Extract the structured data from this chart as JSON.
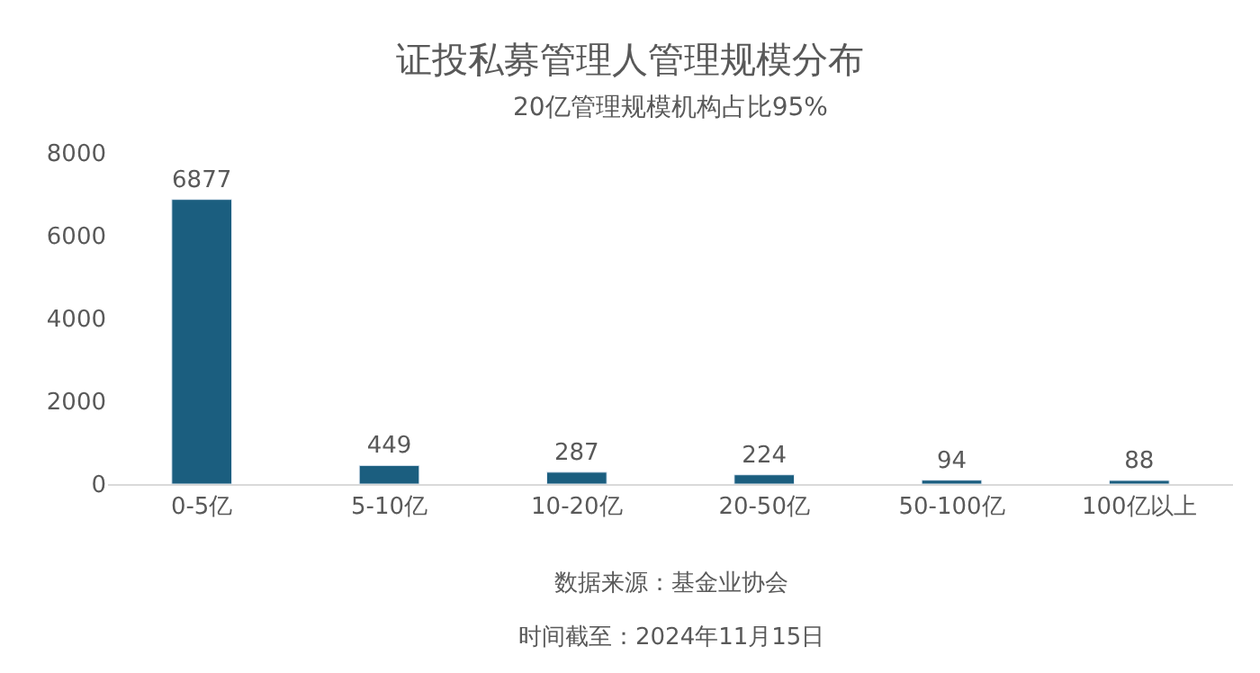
{
  "chart_data": {
    "type": "bar",
    "title": "证投私募管理人管理规模分布",
    "subtitle": "20亿管理规模机构占比95%",
    "categories": [
      "0-5亿",
      "5-10亿",
      "10-20亿",
      "20-50亿",
      "50-100亿",
      "100亿以上"
    ],
    "values": [
      6877,
      449,
      287,
      224,
      94,
      88
    ],
    "color": "#1b5e7f",
    "ylim": [
      0,
      8000
    ],
    "yticks": [
      0,
      2000,
      4000,
      6000,
      8000
    ],
    "grid": false,
    "legend": false,
    "data_labels": true,
    "annotations": [
      "数据来源：基金业协会",
      "时间截至：2024年11月15日"
    ]
  }
}
